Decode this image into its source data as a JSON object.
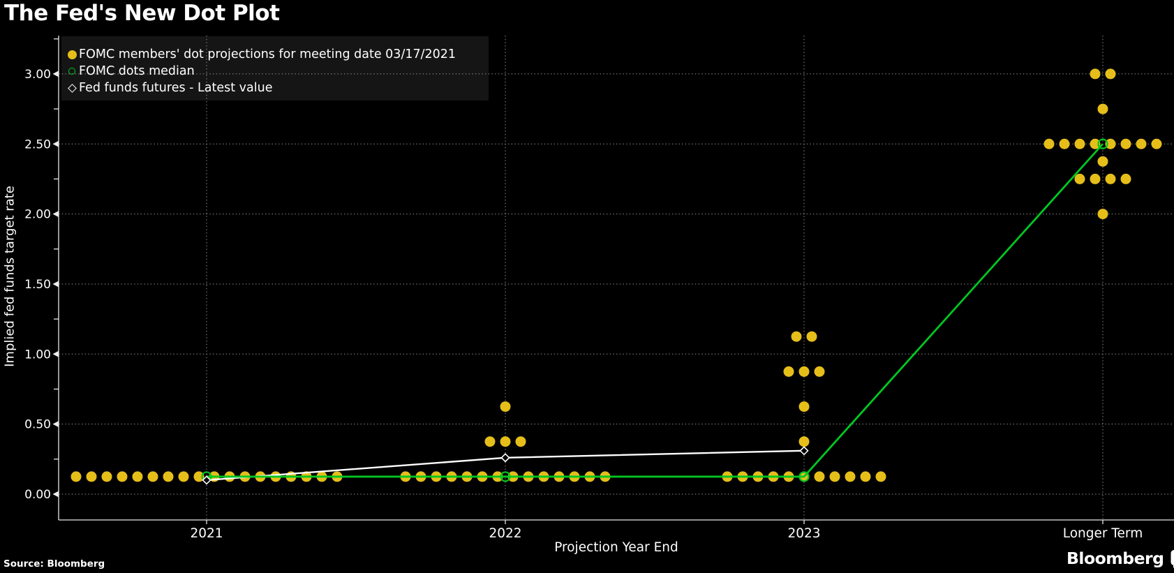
{
  "header": {
    "title": "The Fed's New Dot Plot"
  },
  "footer": {
    "source_label": "Source: Bloomberg",
    "brand": "Bloomberg",
    "brand_icon": "bar-chart-terminal-icon"
  },
  "colors": {
    "background": "#000000",
    "dot_yellow": "#e6be1a",
    "median_green": "#00c722",
    "futures_white": "#ffffff",
    "grid": "#a8a8a8",
    "axis": "#e8e8e8",
    "text": "#ffffff",
    "legend_bg": "#151515"
  },
  "chart_data": {
    "type": "scatter",
    "title": "The Fed's New Dot Plot",
    "xlabel": "Projection Year End",
    "ylabel": "Implied fed funds target rate",
    "x_categories": [
      "2021",
      "2022",
      "2023",
      "Longer Term"
    ],
    "y_ticks": [
      0,
      0.5,
      1,
      1.5,
      2,
      2.5,
      3
    ],
    "y_tick_labels": [
      "0.00",
      "0.50",
      "1.00",
      "1.50",
      "2.00",
      "2.50",
      "3.00"
    ],
    "y_minor_ticks": [
      0.25,
      0.75,
      1.25,
      1.75,
      2.25,
      2.75,
      3.25
    ],
    "ylim": [
      -0.18,
      3.27
    ],
    "grid": true,
    "legend_position": "top-left",
    "legend": [
      {
        "label": "FOMC members' dot projections for meeting date 03/17/2021",
        "marker": "filled-circle",
        "color": "#e6be1a"
      },
      {
        "label": "FOMC dots median",
        "marker": "open-circle",
        "color": "#00c722"
      },
      {
        "label": "Fed funds futures - Latest value",
        "marker": "open-diamond",
        "color": "#ffffff"
      }
    ],
    "dot_projections": [
      {
        "category": "2021",
        "dots": [
          {
            "rate": 0.125,
            "count": 18
          }
        ]
      },
      {
        "category": "2022",
        "dots": [
          {
            "rate": 0.125,
            "count": 14
          },
          {
            "rate": 0.375,
            "count": 3
          },
          {
            "rate": 0.625,
            "count": 1
          }
        ]
      },
      {
        "category": "2023",
        "dots": [
          {
            "rate": 0.125,
            "count": 11
          },
          {
            "rate": 0.375,
            "count": 1
          },
          {
            "rate": 0.625,
            "count": 1
          },
          {
            "rate": 0.875,
            "count": 3
          },
          {
            "rate": 1.125,
            "count": 2
          }
        ]
      },
      {
        "category": "Longer Term",
        "dots": [
          {
            "rate": 2.0,
            "count": 1
          },
          {
            "rate": 2.25,
            "count": 4
          },
          {
            "rate": 2.375,
            "count": 1
          },
          {
            "rate": 2.5,
            "count": 8
          },
          {
            "rate": 2.75,
            "count": 1
          },
          {
            "rate": 3.0,
            "count": 2
          }
        ]
      }
    ],
    "median_series": {
      "name": "FOMC dots median",
      "points": [
        [
          "2021",
          0.125
        ],
        [
          "2022",
          0.125
        ],
        [
          "2023",
          0.125
        ],
        [
          "Longer Term",
          2.5
        ]
      ]
    },
    "futures_series": {
      "name": "Fed funds futures - Latest value",
      "points": [
        [
          "2021",
          0.1
        ],
        [
          "2022",
          0.26
        ],
        [
          "2023",
          0.31
        ]
      ]
    }
  }
}
